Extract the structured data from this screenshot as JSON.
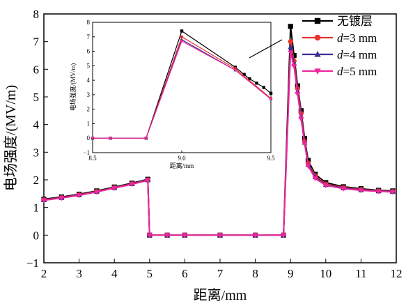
{
  "chart_data": [
    {
      "type": "line",
      "xlabel": "距离/mm",
      "ylabel": "电场强度/(MV/m)",
      "xlim": [
        2,
        12
      ],
      "ylim": [
        -1,
        8
      ],
      "xticks": [
        "2",
        "3",
        "4",
        "5",
        "6",
        "7",
        "8",
        "9",
        "10",
        "11",
        "12"
      ],
      "yticks": [
        "−1",
        "0",
        "1",
        "2",
        "3",
        "4",
        "5",
        "6",
        "7",
        "8"
      ],
      "grid": false,
      "legend_position": "top-right",
      "series": [
        {
          "name": "无镀层",
          "legend_prefix": "",
          "legend_suffix": "",
          "color": "#000000",
          "marker": "square",
          "x": [
            2,
            2.5,
            3,
            3.5,
            4,
            4.5,
            4.95,
            5.0,
            5.5,
            6,
            7,
            8,
            8.8,
            9.0,
            9.1,
            9.2,
            9.3,
            9.4,
            9.5,
            9.7,
            10,
            10.5,
            11,
            11.5,
            11.9
          ],
          "y": [
            1.3,
            1.38,
            1.48,
            1.6,
            1.74,
            1.88,
            2.02,
            0,
            0,
            0,
            0,
            0,
            0,
            7.55,
            6.5,
            5.4,
            4.5,
            3.5,
            2.7,
            2.2,
            1.9,
            1.75,
            1.68,
            1.62,
            1.6
          ]
        },
        {
          "name": "=3 mm",
          "legend_prefix": "d",
          "legend_suffix": "=3 mm",
          "color": "#e8322c",
          "marker": "circle",
          "x": [
            2,
            2.5,
            3,
            3.5,
            4,
            4.5,
            4.95,
            5.0,
            5.5,
            6,
            7,
            8,
            8.8,
            9.0,
            9.1,
            9.2,
            9.3,
            9.4,
            9.5,
            9.7,
            10,
            10.5,
            11,
            11.5,
            11.9
          ],
          "y": [
            1.28,
            1.36,
            1.46,
            1.58,
            1.72,
            1.86,
            2.0,
            0,
            0,
            0,
            0,
            0,
            0,
            7.0,
            6.3,
            5.3,
            4.4,
            3.4,
            2.6,
            2.15,
            1.85,
            1.72,
            1.65,
            1.6,
            1.58
          ]
        },
        {
          "name": "=4 mm",
          "legend_prefix": "d",
          "legend_suffix": "=4 mm",
          "color": "#3c2e94",
          "marker": "triangle-up",
          "x": [
            2,
            2.5,
            3,
            3.5,
            4,
            4.5,
            4.95,
            5.0,
            5.5,
            6,
            7,
            8,
            8.8,
            9.0,
            9.1,
            9.2,
            9.3,
            9.4,
            9.5,
            9.7,
            10,
            10.5,
            11,
            11.5,
            11.9
          ],
          "y": [
            1.27,
            1.35,
            1.45,
            1.57,
            1.71,
            1.85,
            1.99,
            0,
            0,
            0,
            0,
            0,
            0,
            6.8,
            6.2,
            5.2,
            4.3,
            3.35,
            2.55,
            2.1,
            1.82,
            1.7,
            1.63,
            1.59,
            1.57
          ]
        },
        {
          "name": "=5 mm",
          "legend_prefix": "d",
          "legend_suffix": "=5 mm",
          "color": "#f0279b",
          "marker": "triangle-down",
          "x": [
            2,
            2.5,
            3,
            3.5,
            4,
            4.5,
            4.95,
            5.0,
            5.5,
            6,
            7,
            8,
            8.8,
            9.0,
            9.1,
            9.2,
            9.3,
            9.4,
            9.5,
            9.7,
            10,
            10.5,
            11,
            11.5,
            11.9
          ],
          "y": [
            1.26,
            1.34,
            1.44,
            1.56,
            1.7,
            1.84,
            1.98,
            0,
            0,
            0,
            0,
            0,
            0,
            6.6,
            6.1,
            5.1,
            4.2,
            3.3,
            2.5,
            2.05,
            1.8,
            1.68,
            1.62,
            1.58,
            1.56
          ]
        }
      ]
    },
    {
      "type": "line",
      "role": "inset",
      "xlabel": "距离/mm",
      "ylabel": "电场强度/(MV/m)",
      "xlim": [
        8.5,
        9.5
      ],
      "ylim": [
        -1,
        8
      ],
      "xticks": [
        "8.5",
        "9.0",
        "9.5"
      ],
      "yticks": [
        "−1",
        "0",
        "1",
        "2",
        "3",
        "4",
        "5",
        "6",
        "7",
        "8"
      ],
      "series": [
        {
          "name": "无镀层",
          "color": "#000000",
          "marker": "square",
          "x": [
            8.5,
            8.6,
            8.8,
            9.0,
            9.3,
            9.35,
            9.38,
            9.42,
            9.46,
            9.5
          ],
          "y": [
            0,
            0,
            0,
            7.4,
            4.9,
            4.4,
            4.1,
            3.8,
            3.5,
            3.1
          ]
        },
        {
          "name": "=3 mm",
          "color": "#e8322c",
          "marker": "circle",
          "x": [
            8.5,
            8.6,
            8.8,
            9.0,
            9.3,
            9.5
          ],
          "y": [
            0,
            0,
            0,
            7.0,
            4.8,
            2.75
          ]
        },
        {
          "name": "=4 mm",
          "color": "#3c2e94",
          "marker": "triangle-up",
          "x": [
            8.5,
            8.6,
            8.8,
            9.0,
            9.3,
            9.5
          ],
          "y": [
            0,
            0,
            0,
            6.8,
            4.7,
            2.7
          ]
        },
        {
          "name": "=5 mm",
          "color": "#f0279b",
          "marker": "triangle-down",
          "x": [
            8.5,
            8.6,
            8.8,
            9.0,
            9.3,
            9.5
          ],
          "y": [
            0,
            0,
            0,
            6.7,
            4.7,
            2.7
          ]
        }
      ]
    }
  ]
}
